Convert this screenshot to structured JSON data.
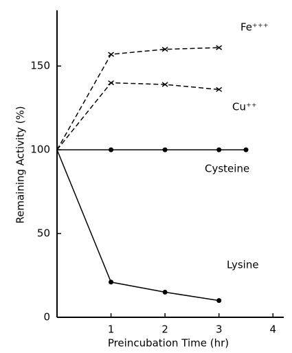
{
  "chart_data": {
    "type": "line",
    "x_label": "Preincubation  Time  (hr)",
    "y_label": "Remaining  Activity  (%)",
    "xlim": [
      0,
      4.2
    ],
    "ylim": [
      0,
      180
    ],
    "xticks": [
      1,
      2,
      3,
      4
    ],
    "yticks": [
      0,
      50,
      100,
      150
    ],
    "series": [
      {
        "name": "Fe⁺⁺⁺",
        "color": "#000000",
        "dashed": true,
        "marker": "x",
        "x": [
          0,
          1,
          2,
          3
        ],
        "values": [
          100,
          157,
          160,
          161
        ]
      },
      {
        "name": "Cu⁺⁺",
        "color": "#000000",
        "dashed": true,
        "marker": "x",
        "x": [
          0,
          1,
          2,
          3
        ],
        "values": [
          100,
          140,
          139,
          136
        ]
      },
      {
        "name": "Cysteine",
        "color": "#000000",
        "dashed": false,
        "marker": "dot",
        "x": [
          0,
          1,
          2,
          3,
          3.5
        ],
        "values": [
          100,
          100,
          100,
          100,
          100
        ]
      },
      {
        "name": "Lysine",
        "color": "#000000",
        "dashed": false,
        "marker": "dot",
        "x": [
          0,
          1,
          2,
          3
        ],
        "values": [
          100,
          21,
          15,
          10
        ]
      }
    ]
  }
}
